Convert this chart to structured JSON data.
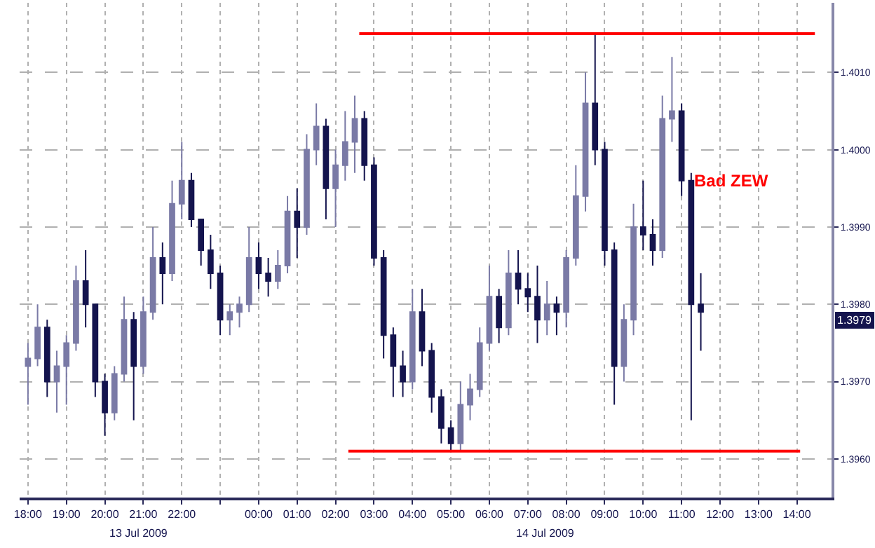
{
  "chart_data": {
    "type": "candlestick",
    "colors": [
      "#7a7aa6",
      "#7a7aa6",
      "#14144e",
      "#7a7aa6",
      "#7a7aa6",
      "#7a7aa6",
      "#14144e",
      "#14144e",
      "#14144e",
      "#7a7aa6",
      "#7a7aa6",
      "#14144e",
      "#7a7aa6",
      "#7a7aa6",
      "#14144e",
      "#7a7aa6",
      "#7a7aa6",
      "#14144e",
      "#14144e",
      "#14144e",
      "#14144e",
      "#7a7aa6",
      "#7a7aa6",
      "#7a7aa6",
      "#14144e",
      "#14144e",
      "#7a7aa6",
      "#7a7aa6",
      "#14144e",
      "#7a7aa6",
      "#7a7aa6",
      "#14144e",
      "#7a7aa6",
      "#7a7aa6",
      "#7a7aa6",
      "#14144e",
      "#14144e",
      "#14144e",
      "#14144e",
      "#14144e",
      "#7a7aa6",
      "#14144e",
      "#14144e",
      "#14144e",
      "#14144e",
      "#7a7aa6",
      "#7a7aa6",
      "#7a7aa6",
      "#7a7aa6",
      "#14144e",
      "#7a7aa6",
      "#14144e",
      "#14144e",
      "#14144e",
      "#7a7aa6",
      "#14144e",
      "#7a7aa6",
      "#7a7aa6",
      "#7a7aa6",
      "#14144e",
      "#14144e",
      "#14144e",
      "#7a7aa6",
      "#7a7aa6",
      "#14144e",
      "#14144e",
      "#7a7aa6",
      "#7a7aa6",
      "#14144e",
      "#14144e",
      "#14144e"
    ],
    "x": [
      "2009-07-13T18:00",
      "2009-07-13T18:15",
      "2009-07-13T18:30",
      "2009-07-13T18:45",
      "2009-07-13T19:00",
      "2009-07-13T19:15",
      "2009-07-13T19:30",
      "2009-07-13T19:45",
      "2009-07-13T20:00",
      "2009-07-13T20:15",
      "2009-07-13T20:30",
      "2009-07-13T20:45",
      "2009-07-13T21:00",
      "2009-07-13T21:15",
      "2009-07-13T21:30",
      "2009-07-13T21:45",
      "2009-07-13T22:00",
      "2009-07-13T22:15",
      "2009-07-13T22:30",
      "2009-07-13T22:45",
      "2009-07-13T23:00",
      "2009-07-13T23:15",
      "2009-07-13T23:30",
      "2009-07-13T23:45",
      "2009-07-14T00:00",
      "2009-07-14T00:15",
      "2009-07-14T00:30",
      "2009-07-14T00:45",
      "2009-07-14T01:00",
      "2009-07-14T01:15",
      "2009-07-14T01:30",
      "2009-07-14T01:45",
      "2009-07-14T02:00",
      "2009-07-14T02:15",
      "2009-07-14T02:30",
      "2009-07-14T02:45",
      "2009-07-14T03:00",
      "2009-07-14T03:15",
      "2009-07-14T03:30",
      "2009-07-14T03:45",
      "2009-07-14T04:00",
      "2009-07-14T04:15",
      "2009-07-14T04:30",
      "2009-07-14T04:45",
      "2009-07-14T05:00",
      "2009-07-14T05:15",
      "2009-07-14T05:30",
      "2009-07-14T05:45",
      "2009-07-14T06:00",
      "2009-07-14T06:15",
      "2009-07-14T06:30",
      "2009-07-14T06:45",
      "2009-07-14T07:00",
      "2009-07-14T07:15",
      "2009-07-14T07:30",
      "2009-07-14T07:45",
      "2009-07-14T08:00",
      "2009-07-14T08:15",
      "2009-07-14T08:30",
      "2009-07-14T08:45",
      "2009-07-14T09:00",
      "2009-07-14T09:15",
      "2009-07-14T09:30",
      "2009-07-14T09:45",
      "2009-07-14T10:00",
      "2009-07-14T10:15",
      "2009-07-14T10:30",
      "2009-07-14T10:45",
      "2009-07-14T11:00",
      "2009-07-14T11:15",
      "2009-07-14T11:30"
    ],
    "ohlc": [
      [
        1.3972,
        1.3975,
        1.3967,
        1.3973
      ],
      [
        1.3973,
        1.398,
        1.3972,
        1.3977
      ],
      [
        1.3977,
        1.3978,
        1.3968,
        1.397
      ],
      [
        1.397,
        1.3974,
        1.3966,
        1.3972
      ],
      [
        1.3972,
        1.3976,
        1.3967,
        1.3975
      ],
      [
        1.3975,
        1.3985,
        1.3974,
        1.3983
      ],
      [
        1.3983,
        1.3987,
        1.3977,
        1.398
      ],
      [
        1.398,
        1.398,
        1.3968,
        1.397
      ],
      [
        1.397,
        1.3971,
        1.3963,
        1.3966
      ],
      [
        1.3966,
        1.3972,
        1.3965,
        1.3971
      ],
      [
        1.3971,
        1.3981,
        1.397,
        1.3978
      ],
      [
        1.3978,
        1.3979,
        1.3965,
        1.3972
      ],
      [
        1.3972,
        1.3981,
        1.3971,
        1.3979
      ],
      [
        1.3979,
        1.399,
        1.3978,
        1.3986
      ],
      [
        1.3986,
        1.3988,
        1.398,
        1.3984
      ],
      [
        1.3984,
        1.3996,
        1.3983,
        1.3993
      ],
      [
        1.3993,
        1.4001,
        1.3991,
        1.3996
      ],
      [
        1.3996,
        1.3997,
        1.399,
        1.3991
      ],
      [
        1.3991,
        1.3991,
        1.3985,
        1.3987
      ],
      [
        1.3987,
        1.3989,
        1.3982,
        1.3984
      ],
      [
        1.3984,
        1.3985,
        1.3976,
        1.3978
      ],
      [
        1.3978,
        1.398,
        1.3976,
        1.3979
      ],
      [
        1.3979,
        1.3981,
        1.3977,
        1.398
      ],
      [
        1.398,
        1.399,
        1.3979,
        1.3986
      ],
      [
        1.3986,
        1.3988,
        1.3982,
        1.3984
      ],
      [
        1.3984,
        1.3986,
        1.3981,
        1.3983
      ],
      [
        1.3983,
        1.3987,
        1.3982,
        1.3985
      ],
      [
        1.3985,
        1.3994,
        1.3984,
        1.3992
      ],
      [
        1.3992,
        1.3995,
        1.3986,
        1.399
      ],
      [
        1.399,
        1.4002,
        1.3989,
        1.4
      ],
      [
        1.4,
        1.4006,
        1.3998,
        1.4003
      ],
      [
        1.4003,
        1.4004,
        1.3991,
        1.3995
      ],
      [
        1.3995,
        1.4,
        1.399,
        1.3998
      ],
      [
        1.3998,
        1.4005,
        1.3996,
        1.4001
      ],
      [
        1.4001,
        1.4007,
        1.3997,
        1.4004
      ],
      [
        1.4004,
        1.4005,
        1.3996,
        1.3998
      ],
      [
        1.3998,
        1.3999,
        1.3985,
        1.3986
      ],
      [
        1.3986,
        1.3987,
        1.3973,
        1.3976
      ],
      [
        1.3976,
        1.3977,
        1.3968,
        1.3972
      ],
      [
        1.3972,
        1.3974,
        1.3968,
        1.397
      ],
      [
        1.397,
        1.3982,
        1.3969,
        1.3979
      ],
      [
        1.3979,
        1.3982,
        1.3972,
        1.3974
      ],
      [
        1.3974,
        1.3975,
        1.3966,
        1.3968
      ],
      [
        1.3968,
        1.3969,
        1.3962,
        1.3964
      ],
      [
        1.3964,
        1.3965,
        1.3961,
        1.3962
      ],
      [
        1.3962,
        1.397,
        1.3961,
        1.3967
      ],
      [
        1.3967,
        1.3971,
        1.3965,
        1.3969
      ],
      [
        1.3969,
        1.3977,
        1.3968,
        1.3975
      ],
      [
        1.3975,
        1.3985,
        1.3974,
        1.3981
      ],
      [
        1.3981,
        1.3982,
        1.3975,
        1.3977
      ],
      [
        1.3977,
        1.3987,
        1.3976,
        1.3984
      ],
      [
        1.3984,
        1.3987,
        1.398,
        1.3982
      ],
      [
        1.3982,
        1.3984,
        1.3979,
        1.3981
      ],
      [
        1.3981,
        1.3985,
        1.3975,
        1.3978
      ],
      [
        1.3978,
        1.3983,
        1.3976,
        1.398
      ],
      [
        1.398,
        1.3981,
        1.3976,
        1.3979
      ],
      [
        1.3979,
        1.3987,
        1.3977,
        1.3986
      ],
      [
        1.3986,
        1.3998,
        1.3985,
        1.3994
      ],
      [
        1.3994,
        1.401,
        1.3992,
        1.4006
      ],
      [
        1.4006,
        1.4015,
        1.3998,
        1.4
      ],
      [
        1.4,
        1.4001,
        1.3985,
        1.3987
      ],
      [
        1.3987,
        1.3988,
        1.3967,
        1.3972
      ],
      [
        1.3972,
        1.398,
        1.397,
        1.3978
      ],
      [
        1.3978,
        1.3993,
        1.3976,
        1.399
      ],
      [
        1.399,
        1.3996,
        1.3987,
        1.3989
      ],
      [
        1.3989,
        1.3991,
        1.3985,
        1.3987
      ],
      [
        1.3987,
        1.4007,
        1.3986,
        1.4004
      ],
      [
        1.4004,
        1.4012,
        1.4001,
        1.4005
      ],
      [
        1.4005,
        1.4006,
        1.3994,
        1.3996
      ],
      [
        1.3996,
        1.3997,
        1.3965,
        1.398
      ],
      [
        1.398,
        1.3984,
        1.3974,
        1.3979
      ]
    ],
    "series": [
      {
        "type": "line",
        "color": "#ff0000",
        "x": [
          "2009-07-14T02:37",
          "2009-07-14T14:28"
        ],
        "values": [
          1.4015,
          1.4015
        ]
      },
      {
        "type": "line",
        "color": "#ff0000",
        "x": [
          "2009-07-14T02:20",
          "2009-07-14T14:05"
        ],
        "values": [
          1.3961,
          1.3961
        ]
      }
    ],
    "xlim": [
      "2009-07-13T17:47",
      "2009-07-14T14:54"
    ],
    "xticks": [
      {
        "value": "2009-07-13T18:00",
        "label": "18:00"
      },
      {
        "value": "2009-07-13T19:00",
        "label": "19:00"
      },
      {
        "value": "2009-07-13T20:00",
        "label": "20:00"
      },
      {
        "value": "2009-07-13T21:00",
        "label": "21:00"
      },
      {
        "value": "2009-07-13T22:00",
        "label": "22:00"
      },
      {
        "value": "2009-07-13T23:00",
        "label": null
      },
      {
        "value": "2009-07-14T00:00",
        "label": "00:00"
      },
      {
        "value": "2009-07-14T01:00",
        "label": "01:00"
      },
      {
        "value": "2009-07-14T02:00",
        "label": "02:00"
      },
      {
        "value": "2009-07-14T03:00",
        "label": "03:00"
      },
      {
        "value": "2009-07-14T04:00",
        "label": "04:00"
      },
      {
        "value": "2009-07-14T05:00",
        "label": "05:00"
      },
      {
        "value": "2009-07-14T06:00",
        "label": "06:00"
      },
      {
        "value": "2009-07-14T07:00",
        "label": "07:00"
      },
      {
        "value": "2009-07-14T08:00",
        "label": "08:00"
      },
      {
        "value": "2009-07-14T09:00",
        "label": "09:00"
      },
      {
        "value": "2009-07-14T10:00",
        "label": "10:00"
      },
      {
        "value": "2009-07-14T11:00",
        "label": "11:00"
      },
      {
        "value": "2009-07-14T12:00",
        "label": "12:00"
      },
      {
        "value": "2009-07-14T13:00",
        "label": "13:00"
      },
      {
        "value": "2009-07-14T14:00",
        "label": "14:00"
      }
    ],
    "ylim": [
      1.3955,
      1.4019
    ],
    "yticks": [
      {
        "value": 1.396,
        "label": "1.3960"
      },
      {
        "value": 1.397,
        "label": "1.3970"
      },
      {
        "value": 1.398,
        "label": "1.3980"
      },
      {
        "value": 1.399,
        "label": "1.3990"
      },
      {
        "value": 1.4,
        "label": "1.4000"
      },
      {
        "value": 1.401,
        "label": "1.4010"
      }
    ],
    "grid": true,
    "annotations": [
      "Bad ZEW",
      "1.3979",
      "13 Jul 2009",
      "14 Jul 2009"
    ]
  }
}
